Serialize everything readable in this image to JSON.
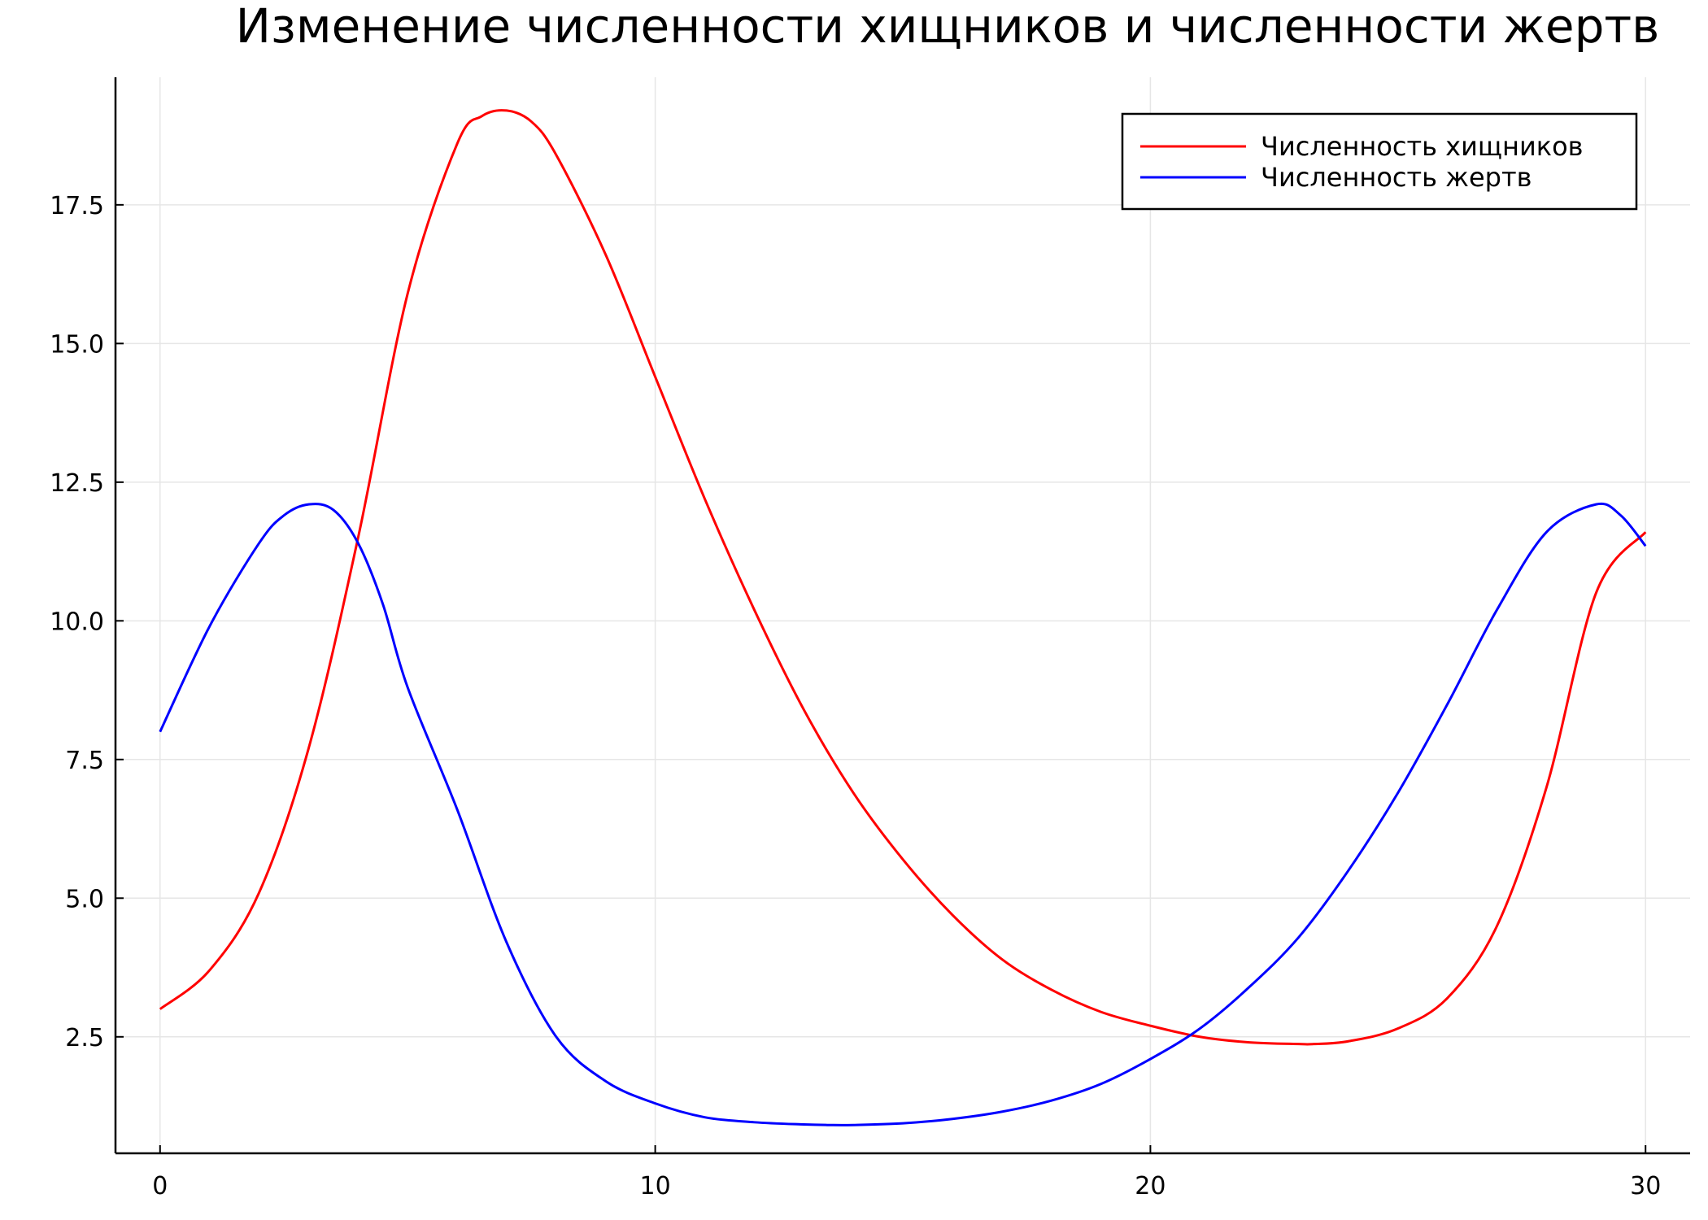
{
  "chart_data": {
    "type": "line",
    "title": "Изменение численности хищников и численности жертв",
    "xlabel": "",
    "ylabel": "",
    "xlim": [
      -0.9,
      30.9
    ],
    "ylim": [
      0.4,
      19.8
    ],
    "xticks": [
      0,
      10,
      20,
      30
    ],
    "xtick_labels": [
      "0",
      "10",
      "20",
      "30"
    ],
    "yticks": [
      2.5,
      5.0,
      7.5,
      10.0,
      12.5,
      15.0,
      17.5
    ],
    "ytick_labels": [
      "2.5",
      "5.0",
      "7.5",
      "10.0",
      "12.5",
      "15.0",
      "17.5"
    ],
    "grid": true,
    "legend_position": "top-right",
    "series": [
      {
        "name": "Численность хищников",
        "color": "#ff0000",
        "x": [
          0,
          1,
          2,
          3,
          4,
          5,
          6,
          6.5,
          7,
          7.5,
          8,
          9,
          10,
          11,
          12,
          13,
          14,
          15,
          16,
          17,
          18,
          19,
          20,
          21,
          22,
          23,
          23.3,
          24,
          25,
          26,
          27,
          28,
          29,
          30
        ],
        "y": [
          3.0,
          3.7,
          5.1,
          7.7,
          11.5,
          15.9,
          18.6,
          19.1,
          19.2,
          19.0,
          18.4,
          16.6,
          14.4,
          12.2,
          10.2,
          8.4,
          6.9,
          5.7,
          4.7,
          3.9,
          3.35,
          2.95,
          2.7,
          2.5,
          2.4,
          2.37,
          2.37,
          2.42,
          2.65,
          3.2,
          4.5,
          7.0,
          10.5,
          11.6
        ]
      },
      {
        "name": "Численность жертв",
        "color": "#0000ff",
        "x": [
          0,
          1,
          2,
          2.5,
          3,
          3.5,
          4,
          4.5,
          5,
          6,
          7,
          8,
          9,
          10,
          11,
          12,
          13,
          13.5,
          14,
          15,
          16,
          17,
          18,
          19,
          20,
          21,
          22,
          23,
          24,
          25,
          26,
          27,
          28,
          29,
          29.5,
          30
        ],
        "y": [
          8.0,
          9.9,
          11.4,
          11.9,
          12.1,
          12.0,
          11.4,
          10.3,
          8.8,
          6.6,
          4.2,
          2.5,
          1.7,
          1.3,
          1.05,
          0.96,
          0.92,
          0.91,
          0.91,
          0.94,
          1.02,
          1.15,
          1.35,
          1.65,
          2.1,
          2.65,
          3.4,
          4.3,
          5.5,
          6.9,
          8.5,
          10.2,
          11.6,
          12.1,
          11.9,
          11.35
        ]
      }
    ]
  }
}
